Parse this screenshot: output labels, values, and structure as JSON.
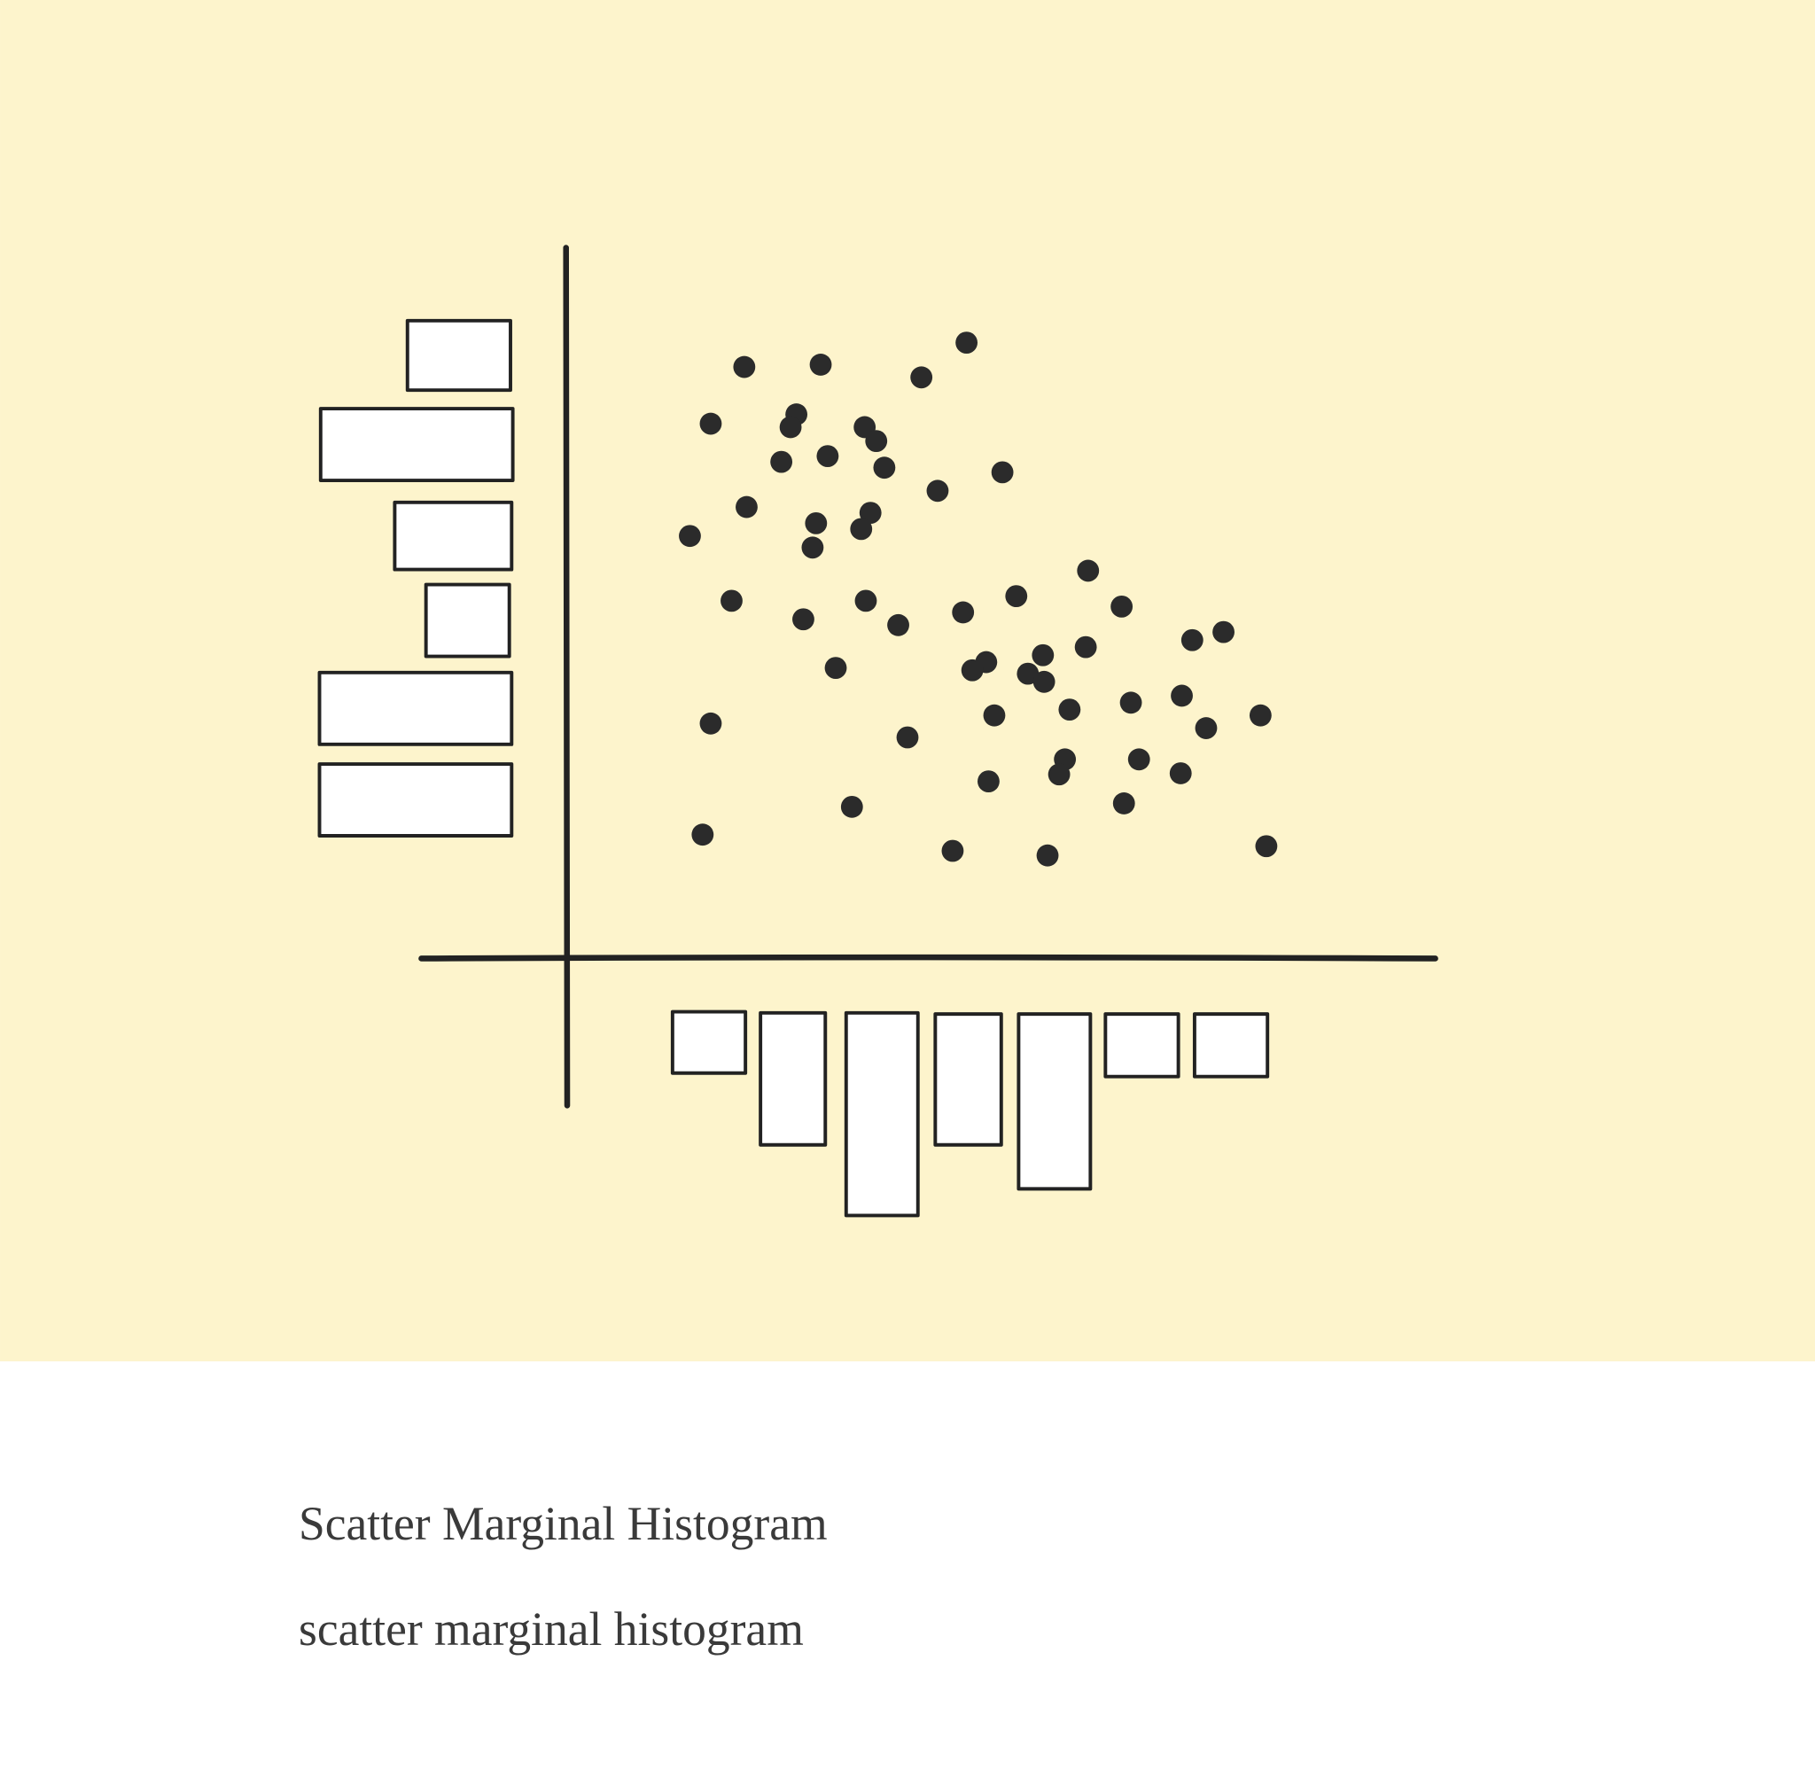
{
  "caption": {
    "title": "Scatter Marginal Histogram",
    "subtitle": "scatter marginal histogram"
  }
}
